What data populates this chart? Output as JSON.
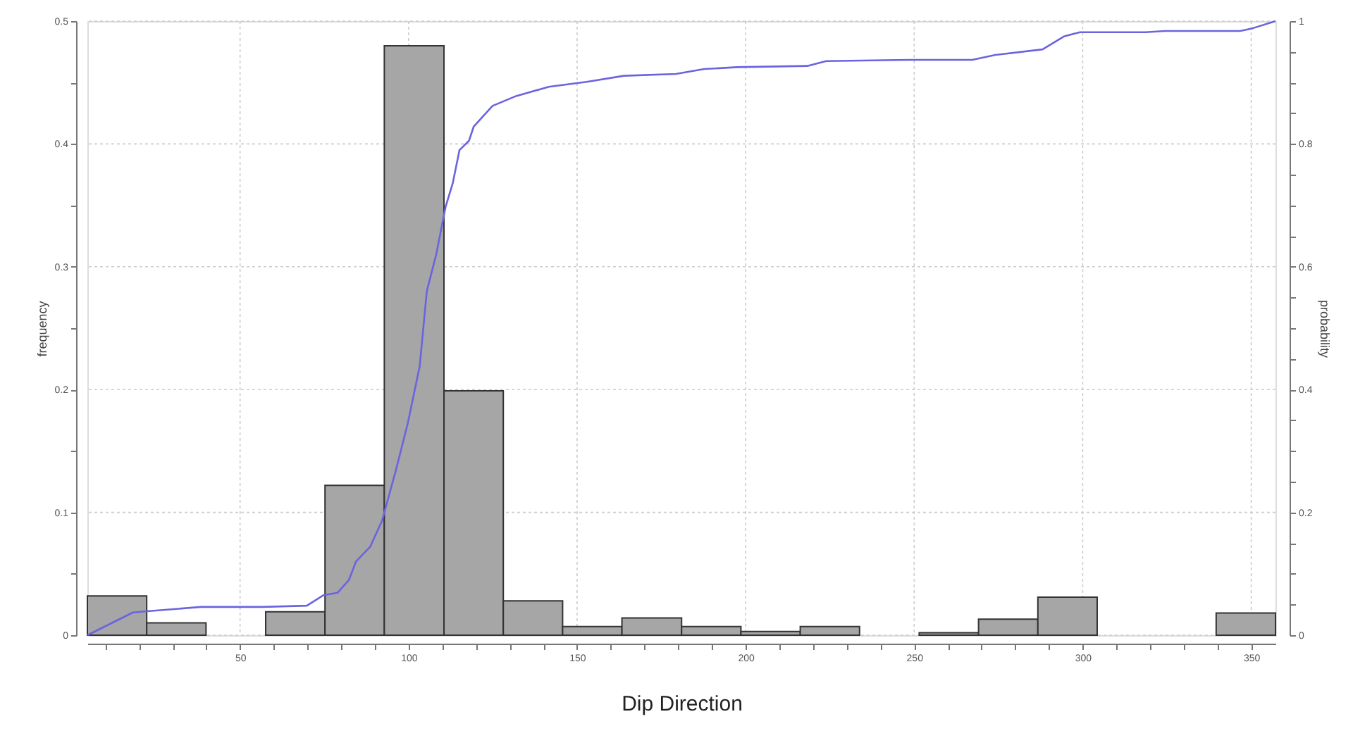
{
  "chart_data": {
    "type": "histogram",
    "xlabel": "Dip Direction",
    "ylabel": "frequency",
    "y2label": "probability",
    "series": [
      {
        "color": "#a6a6a6",
        "bins": [
          4.7,
          22.3,
          39.9,
          57.6,
          75.2,
          92.8,
          110.5,
          128.1,
          145.7,
          163.3,
          181.0,
          198.6,
          216.2,
          233.8,
          251.5,
          269.1,
          286.7,
          304.3,
          322.0,
          339.6,
          357.2
        ],
        "values": [
          0.032,
          0.01,
          0,
          0.019,
          0.122,
          0.48,
          0.199,
          0.028,
          0.007,
          0.014,
          0.007,
          0.003,
          0.007,
          0,
          0.002,
          0.013,
          0.031,
          0,
          0,
          0.018
        ]
      },
      {
        "type": "line",
        "axis": "y2",
        "color": "#6b63e0",
        "x": [
          4.7,
          18.2,
          22.4,
          38.4,
          56.6,
          69.8,
          74.7,
          78.9,
          82.3,
          84.4,
          88.6,
          92.1,
          96.3,
          99.8,
          103.3,
          105.4,
          108.2,
          111.0,
          113.1,
          115.1,
          117.9,
          119.3,
          124.9,
          131.9,
          141.6,
          152.8,
          163.9,
          179.3,
          187.7,
          197.4,
          218.3,
          223.9,
          249.0,
          267.2,
          274.1,
          288.1,
          294.4,
          299.2,
          318.7,
          324.4,
          346.7,
          350.2,
          357.2
        ],
        "values": [
          0,
          0.037,
          0.039,
          0.046,
          0.046,
          0.048,
          0.065,
          0.069,
          0.09,
          0.12,
          0.144,
          0.186,
          0.27,
          0.346,
          0.438,
          0.56,
          0.62,
          0.698,
          0.736,
          0.79,
          0.805,
          0.828,
          0.862,
          0.878,
          0.893,
          0.901,
          0.911,
          0.914,
          0.922,
          0.925,
          0.927,
          0.935,
          0.937,
          0.937,
          0.945,
          0.954,
          0.975,
          0.982,
          0.982,
          0.984,
          0.984,
          0.988,
          1.0
        ]
      }
    ],
    "xlim": [
      4.7,
      357.2
    ],
    "xticks": [
      {
        "value": 10,
        "label": null
      },
      {
        "value": 20,
        "label": null
      },
      {
        "value": 30,
        "label": null
      },
      {
        "value": 40,
        "label": null
      },
      50,
      {
        "value": 60,
        "label": null
      },
      {
        "value": 70,
        "label": null
      },
      {
        "value": 80,
        "label": null
      },
      {
        "value": 90,
        "label": null
      },
      100,
      {
        "value": 110,
        "label": null
      },
      {
        "value": 120,
        "label": null
      },
      {
        "value": 130,
        "label": null
      },
      {
        "value": 140,
        "label": null
      },
      150,
      {
        "value": 160,
        "label": null
      },
      {
        "value": 170,
        "label": null
      },
      {
        "value": 180,
        "label": null
      },
      {
        "value": 190,
        "label": null
      },
      200,
      {
        "value": 210,
        "label": null
      },
      {
        "value": 220,
        "label": null
      },
      {
        "value": 230,
        "label": null
      },
      {
        "value": 240,
        "label": null
      },
      250,
      {
        "value": 260,
        "label": null
      },
      {
        "value": 270,
        "label": null
      },
      {
        "value": 280,
        "label": null
      },
      {
        "value": 290,
        "label": null
      },
      300,
      {
        "value": 310,
        "label": null
      },
      {
        "value": 320,
        "label": null
      },
      {
        "value": 330,
        "label": null
      },
      {
        "value": 340,
        "label": null
      },
      350
    ],
    "ylim": [
      0,
      0.5
    ],
    "yticks": [
      0,
      {
        "value": 0.05,
        "label": null
      },
      0.1,
      {
        "value": 0.15,
        "label": null
      },
      0.2,
      {
        "value": 0.25,
        "label": null
      },
      0.3,
      {
        "value": 0.35,
        "label": null
      },
      0.4,
      {
        "value": 0.45,
        "label": null
      },
      0.5
    ],
    "y2lim": [
      0,
      1
    ],
    "y2ticks": [
      0,
      {
        "value": 0.05,
        "label": null
      },
      {
        "value": 0.1,
        "label": null
      },
      {
        "value": 0.15,
        "label": null
      },
      0.2,
      {
        "value": 0.25,
        "label": null
      },
      {
        "value": 0.3,
        "label": null
      },
      {
        "value": 0.35,
        "label": null
      },
      0.4,
      {
        "value": 0.45,
        "label": null
      },
      {
        "value": 0.5,
        "label": null
      },
      {
        "value": 0.55,
        "label": null
      },
      0.6,
      {
        "value": 0.65,
        "label": null
      },
      {
        "value": 0.7,
        "label": null
      },
      {
        "value": 0.75,
        "label": null
      },
      0.8,
      {
        "value": 0.85,
        "label": null
      },
      {
        "value": 0.9,
        "label": null
      },
      {
        "value": 0.95,
        "label": null
      },
      1
    ],
    "grid": true,
    "line_style": "solid",
    "marker": "none"
  }
}
